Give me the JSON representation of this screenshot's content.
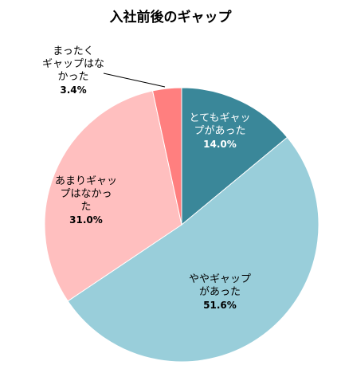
{
  "chart_data": {
    "type": "pie",
    "title": "入社前後のギャップ",
    "slices": [
      {
        "label_lines": [
          "とてもギャッ",
          "プがあった"
        ],
        "value_text": "14.0%",
        "value": 14.0,
        "color": "#3a8799",
        "text_color": "#ffffff"
      },
      {
        "label_lines": [
          "ややギャップ",
          "があった"
        ],
        "value_text": "51.6%",
        "value": 51.6,
        "color": "#99ceda",
        "text_color": "#000000"
      },
      {
        "label_lines": [
          "あまりギャッ",
          "プはなかっ",
          "た"
        ],
        "value_text": "31.0%",
        "value": 31.0,
        "color": "#ffbfbf",
        "text_color": "#000000"
      },
      {
        "label_lines": [
          "まったく",
          "ギャップはな",
          "かった"
        ],
        "value_text": "3.4%",
        "value": 3.4,
        "color": "#ff7f7f",
        "text_color": "#000000"
      }
    ],
    "start_angle_deg": 0,
    "direction": "clockwise",
    "legend": "none"
  }
}
